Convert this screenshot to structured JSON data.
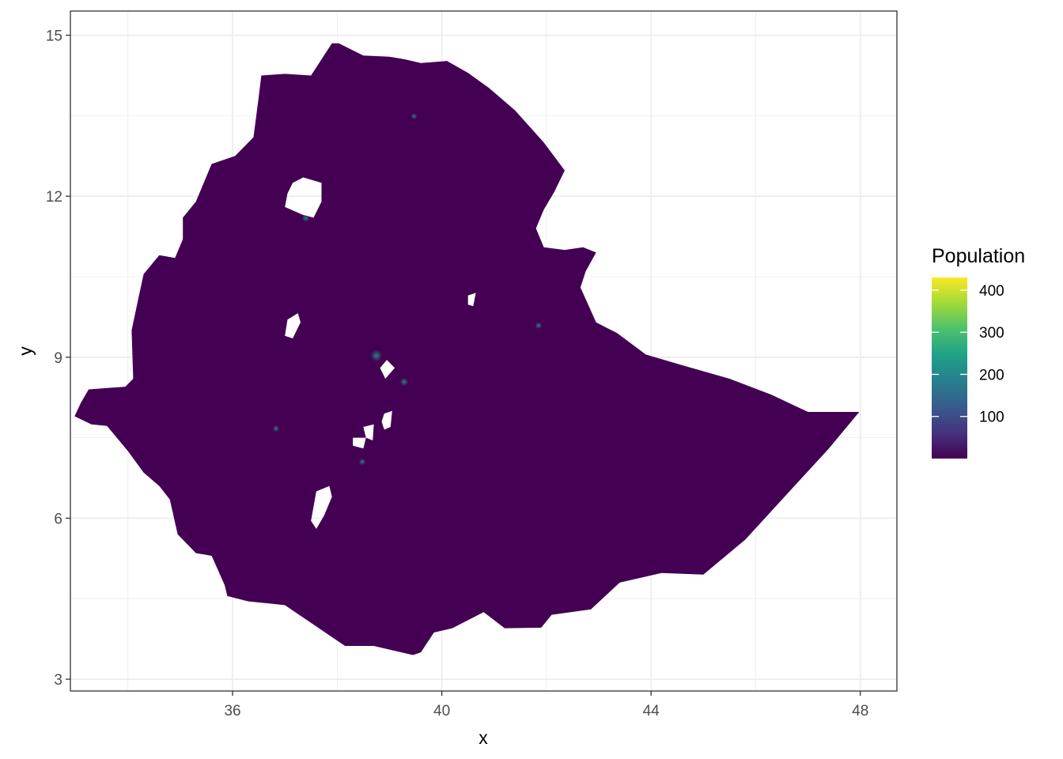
{
  "chart_data": {
    "type": "heatmap",
    "title": "",
    "xlabel": "x",
    "ylabel": "y",
    "xlim": [
      32.9,
      48.7
    ],
    "ylim": [
      2.78,
      15.45
    ],
    "x_ticks": [
      36,
      40,
      44,
      48
    ],
    "y_ticks": [
      3,
      6,
      9,
      12,
      15
    ],
    "grid": true,
    "legend": {
      "title": "Population",
      "position": "right",
      "ticks": [
        100,
        200,
        300,
        400
      ],
      "range": [
        0,
        430
      ],
      "palette": [
        "#440154",
        "#46327e",
        "#365c8d",
        "#277f8e",
        "#1fa187",
        "#4ac16d",
        "#a0da39",
        "#fde725"
      ]
    },
    "region_fill": "#440154",
    "hotspots": [
      {
        "x": 38.75,
        "y": 9.03,
        "value": 180
      },
      {
        "x": 39.28,
        "y": 8.54,
        "value": 90
      },
      {
        "x": 37.4,
        "y": 11.59,
        "value": 70
      },
      {
        "x": 41.85,
        "y": 9.59,
        "value": 60
      },
      {
        "x": 36.83,
        "y": 7.67,
        "value": 55
      },
      {
        "x": 38.48,
        "y": 7.05,
        "value": 60
      },
      {
        "x": 39.47,
        "y": 13.49,
        "value": 45
      }
    ],
    "outline": [
      [
        38.03,
        14.85
      ],
      [
        38.5,
        14.62
      ],
      [
        39.0,
        14.6
      ],
      [
        39.3,
        14.55
      ],
      [
        39.6,
        14.48
      ],
      [
        40.1,
        14.52
      ],
      [
        40.5,
        14.3
      ],
      [
        40.9,
        14.02
      ],
      [
        41.4,
        13.6
      ],
      [
        41.95,
        13.0
      ],
      [
        42.35,
        12.48
      ],
      [
        42.15,
        12.08
      ],
      [
        41.95,
        11.75
      ],
      [
        41.8,
        11.4
      ],
      [
        41.95,
        11.05
      ],
      [
        42.35,
        11.0
      ],
      [
        42.7,
        11.05
      ],
      [
        42.95,
        10.95
      ],
      [
        42.75,
        10.6
      ],
      [
        42.65,
        10.3
      ],
      [
        42.95,
        9.65
      ],
      [
        43.35,
        9.45
      ],
      [
        43.9,
        9.05
      ],
      [
        44.6,
        8.85
      ],
      [
        45.5,
        8.6
      ],
      [
        46.3,
        8.3
      ],
      [
        47.0,
        7.98
      ],
      [
        47.98,
        7.98
      ],
      [
        47.4,
        7.3
      ],
      [
        46.6,
        6.45
      ],
      [
        45.8,
        5.6
      ],
      [
        45.0,
        4.95
      ],
      [
        44.2,
        4.98
      ],
      [
        43.4,
        4.8
      ],
      [
        42.85,
        4.3
      ],
      [
        42.1,
        4.2
      ],
      [
        41.9,
        3.96
      ],
      [
        41.2,
        3.95
      ],
      [
        40.8,
        4.25
      ],
      [
        40.2,
        3.95
      ],
      [
        39.85,
        3.87
      ],
      [
        39.6,
        3.5
      ],
      [
        39.45,
        3.45
      ],
      [
        38.7,
        3.62
      ],
      [
        38.15,
        3.62
      ],
      [
        37.0,
        4.38
      ],
      [
        36.3,
        4.45
      ],
      [
        35.9,
        4.55
      ],
      [
        35.85,
        4.75
      ],
      [
        35.6,
        5.3
      ],
      [
        35.3,
        5.35
      ],
      [
        34.95,
        5.7
      ],
      [
        34.8,
        6.35
      ],
      [
        34.6,
        6.6
      ],
      [
        34.3,
        6.85
      ],
      [
        34.0,
        7.25
      ],
      [
        33.6,
        7.72
      ],
      [
        33.3,
        7.75
      ],
      [
        32.98,
        7.9
      ],
      [
        33.1,
        8.15
      ],
      [
        33.25,
        8.4
      ],
      [
        33.95,
        8.45
      ],
      [
        34.1,
        8.6
      ],
      [
        34.07,
        9.5
      ],
      [
        34.2,
        10.1
      ],
      [
        34.3,
        10.55
      ],
      [
        34.6,
        10.9
      ],
      [
        34.9,
        10.85
      ],
      [
        35.05,
        11.2
      ],
      [
        35.05,
        11.6
      ],
      [
        35.3,
        11.9
      ],
      [
        35.6,
        12.6
      ],
      [
        36.05,
        12.75
      ],
      [
        36.4,
        13.1
      ],
      [
        36.5,
        13.85
      ],
      [
        36.55,
        14.25
      ],
      [
        37.0,
        14.28
      ],
      [
        37.5,
        14.25
      ],
      [
        37.9,
        14.85
      ]
    ],
    "holes": [
      [
        [
          37.15,
          12.25
        ],
        [
          37.35,
          12.35
        ],
        [
          37.7,
          12.25
        ],
        [
          37.7,
          11.9
        ],
        [
          37.55,
          11.6
        ],
        [
          37.35,
          11.65
        ],
        [
          37.0,
          11.8
        ],
        [
          37.05,
          12.05
        ]
      ],
      [
        [
          37.05,
          9.7
        ],
        [
          37.25,
          9.82
        ],
        [
          37.3,
          9.65
        ],
        [
          37.15,
          9.35
        ],
        [
          37.0,
          9.4
        ]
      ],
      [
        [
          38.9,
          7.95
        ],
        [
          39.05,
          8.0
        ],
        [
          39.02,
          7.7
        ],
        [
          38.9,
          7.65
        ],
        [
          38.85,
          7.8
        ]
      ],
      [
        [
          38.5,
          7.7
        ],
        [
          38.7,
          7.75
        ],
        [
          38.68,
          7.45
        ],
        [
          38.55,
          7.5
        ]
      ],
      [
        [
          38.3,
          7.5
        ],
        [
          38.55,
          7.5
        ],
        [
          38.5,
          7.3
        ],
        [
          38.3,
          7.35
        ]
      ],
      [
        [
          37.6,
          6.5
        ],
        [
          37.85,
          6.6
        ],
        [
          37.9,
          6.4
        ],
        [
          37.75,
          6.05
        ],
        [
          37.6,
          5.8
        ],
        [
          37.5,
          5.95
        ]
      ],
      [
        [
          40.5,
          10.15
        ],
        [
          40.65,
          10.2
        ],
        [
          40.6,
          9.95
        ],
        [
          40.5,
          9.98
        ]
      ],
      [
        [
          38.95,
          8.95
        ],
        [
          39.1,
          8.8
        ],
        [
          38.92,
          8.6
        ],
        [
          38.82,
          8.8
        ]
      ]
    ]
  }
}
